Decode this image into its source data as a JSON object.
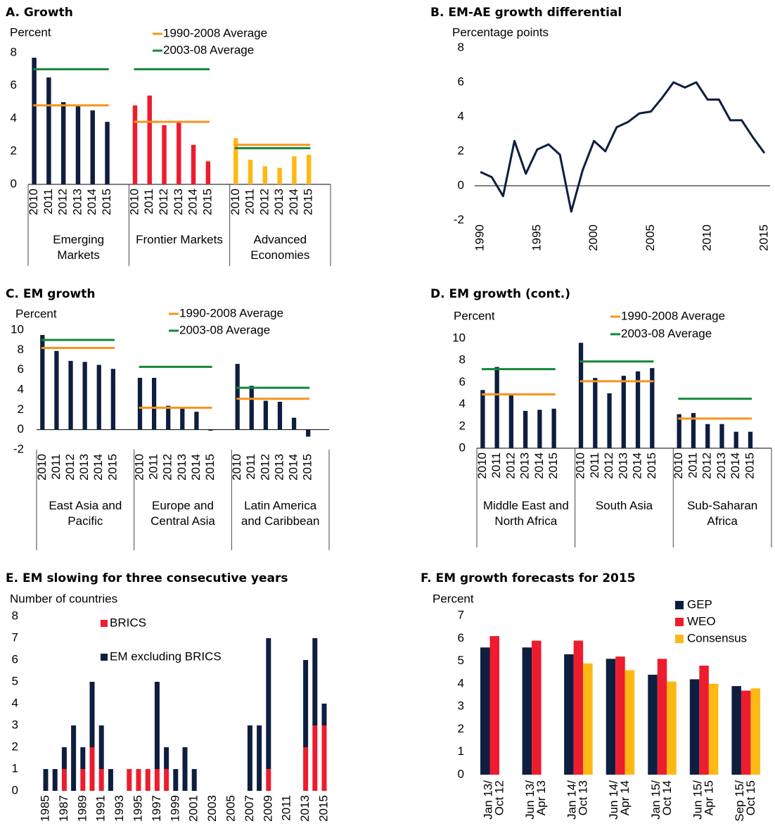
{
  "chart_data": [
    {
      "type": "grouped_bar",
      "title": "A. Growth",
      "ylabel": "Percent",
      "ylim": [
        0,
        8
      ],
      "yticks": [
        0,
        2,
        4,
        6,
        8
      ],
      "categories": [
        "2010",
        "2011",
        "2012",
        "2013",
        "2014",
        "2015"
      ],
      "reference_lines": [
        {
          "name": "1990-2008 Average",
          "color": "#f7941d"
        },
        {
          "name": "2003-08 Average",
          "color": "#13873a"
        }
      ],
      "groups": [
        {
          "name": "Emerging Markets",
          "color": "#0d1e40",
          "values": [
            7.7,
            6.5,
            5.0,
            4.8,
            4.5,
            3.8
          ],
          "averages": [
            4.8,
            7.0
          ]
        },
        {
          "name": "Frontier Markets",
          "color": "#ed1c2e",
          "values": [
            4.8,
            5.4,
            3.6,
            3.8,
            2.4,
            1.4
          ],
          "averages": [
            3.8,
            7.0
          ]
        },
        {
          "name": "Advanced Economies",
          "color": "#fdb913",
          "values": [
            2.8,
            1.5,
            1.1,
            1.0,
            1.7,
            1.8
          ],
          "averages": [
            2.4,
            2.2
          ]
        }
      ]
    },
    {
      "type": "line",
      "title": "B. EM-AE growth differential",
      "ylabel": "Percentage points",
      "color": "#0d1e40",
      "ylim": [
        -2,
        8
      ],
      "yticks": [
        -2,
        0,
        2,
        4,
        6,
        8
      ],
      "xlim": [
        1989.5,
        2015.5
      ],
      "xticks": [
        1990,
        1995,
        2000,
        2005,
        2010,
        2015
      ],
      "x": [
        1990,
        1991,
        1992,
        1993,
        1994,
        1995,
        1996,
        1997,
        1998,
        1999,
        2000,
        2001,
        2002,
        2003,
        2004,
        2005,
        2006,
        2007,
        2008,
        2009,
        2010,
        2011,
        2012,
        2013,
        2014,
        2015
      ],
      "values": [
        0.8,
        0.5,
        -0.6,
        2.6,
        0.7,
        2.1,
        2.4,
        1.8,
        -1.5,
        0.9,
        2.6,
        2.0,
        3.4,
        3.7,
        4.2,
        4.3,
        5.1,
        6.0,
        5.7,
        6.0,
        5.0,
        5.0,
        3.8,
        3.8,
        2.8,
        1.9
      ]
    },
    {
      "type": "grouped_bar",
      "title": "C. EM growth",
      "ylabel": "Percent",
      "ylim": [
        -2,
        10
      ],
      "yticks": [
        -2,
        0,
        2,
        4,
        6,
        8,
        10
      ],
      "categories": [
        "2010",
        "2011",
        "2012",
        "2013",
        "2014",
        "2015"
      ],
      "reference_lines": [
        {
          "name": "1990-2008 Average",
          "color": "#f7941d"
        },
        {
          "name": "2003-08 Average",
          "color": "#13873a"
        }
      ],
      "groups": [
        {
          "name": "East Asia and Pacific",
          "color": "#0d1e40",
          "values": [
            9.5,
            7.9,
            6.9,
            6.8,
            6.5,
            6.1
          ],
          "averages": [
            8.2,
            9.0
          ]
        },
        {
          "name": "Europe and Central Asia",
          "color": "#0d1e40",
          "values": [
            5.2,
            5.2,
            2.4,
            2.1,
            1.8,
            -0.1
          ],
          "averages": [
            2.2,
            6.3
          ]
        },
        {
          "name": "Latin America and Caribbean",
          "color": "#0d1e40",
          "values": [
            6.6,
            4.4,
            2.9,
            2.8,
            1.2,
            -0.7
          ],
          "averages": [
            3.1,
            4.2
          ]
        }
      ]
    },
    {
      "type": "grouped_bar",
      "title": "D. EM growth (cont.)",
      "ylabel": "Percent",
      "ylim": [
        0,
        10
      ],
      "yticks": [
        0,
        2,
        4,
        6,
        8,
        10
      ],
      "categories": [
        "2010",
        "2011",
        "2012",
        "2013",
        "2014",
        "2015"
      ],
      "reference_lines": [
        {
          "name": "1990-2008 Average",
          "color": "#f7941d"
        },
        {
          "name": "2003-08 Average",
          "color": "#13873a"
        }
      ],
      "groups": [
        {
          "name": "Middle East and North Africa",
          "color": "#0d1e40",
          "values": [
            5.3,
            7.4,
            4.8,
            3.4,
            3.5,
            3.6
          ],
          "averages": [
            4.9,
            7.2
          ]
        },
        {
          "name": "South Asia",
          "color": "#0d1e40",
          "values": [
            9.6,
            6.4,
            5.0,
            6.6,
            7.0,
            7.3
          ],
          "averages": [
            6.1,
            7.9
          ]
        },
        {
          "name": "Sub-Saharan Africa",
          "color": "#0d1e40",
          "values": [
            3.1,
            3.2,
            2.2,
            2.2,
            1.5,
            1.5
          ],
          "averages": [
            2.7,
            4.5
          ]
        }
      ]
    },
    {
      "type": "stacked_bar",
      "title": "E. EM slowing for three consecutive years",
      "ylabel": "Number of countries",
      "ylim": [
        0,
        8
      ],
      "yticks": [
        0,
        1,
        2,
        3,
        4,
        5,
        6,
        7,
        8
      ],
      "categories": [
        "1985",
        null,
        "1987",
        null,
        "1989",
        null,
        "1991",
        null,
        "1993",
        null,
        "1995",
        null,
        "1997",
        null,
        "1999",
        null,
        "2001",
        null,
        "2003",
        null,
        "2005",
        null,
        "2007",
        null,
        "2009",
        null,
        "2011",
        null,
        "2013",
        null,
        "2015"
      ],
      "series": [
        {
          "name": "BRICS",
          "color": "#ed1c2e",
          "values": [
            0,
            0,
            1,
            0,
            1,
            2,
            1,
            0,
            0,
            1,
            1,
            1,
            1,
            1,
            0,
            0,
            0,
            0,
            0,
            0,
            0,
            0,
            0,
            0,
            1,
            0,
            0,
            0,
            2,
            3,
            3
          ]
        },
        {
          "name": "EM excluding BRICS",
          "color": "#0d1e40",
          "values": [
            1,
            1,
            1,
            3,
            1,
            3,
            2,
            1,
            0,
            0,
            0,
            0,
            4,
            1,
            1,
            2,
            1,
            0,
            0,
            0,
            0,
            0,
            3,
            3,
            6,
            0,
            0,
            0,
            4,
            4,
            1
          ]
        }
      ]
    },
    {
      "type": "bar",
      "title": "F. EM growth forecasts for 2015",
      "ylabel": "Percent",
      "ylim": [
        0,
        7
      ],
      "yticks": [
        0,
        1,
        2,
        3,
        4,
        5,
        6,
        7
      ],
      "categories": [
        [
          "Jan 13/",
          "Oct 12"
        ],
        [
          "Jun 13/",
          "Apr 13"
        ],
        [
          "Jan 14/",
          "Oct 13"
        ],
        [
          "Jun 14/",
          "Apr 14"
        ],
        [
          "Jan 15/",
          "Oct 14"
        ],
        [
          "Jun 15/",
          "Apr 15"
        ],
        [
          "Sep 15/",
          "Oct 15"
        ]
      ],
      "series": [
        {
          "name": "GEP",
          "color": "#0d1e40",
          "values": [
            5.6,
            5.6,
            5.3,
            5.1,
            4.4,
            4.2,
            3.9
          ]
        },
        {
          "name": "WEO",
          "color": "#ed1c2e",
          "values": [
            6.1,
            5.9,
            5.9,
            5.2,
            5.1,
            4.8,
            3.7
          ]
        },
        {
          "name": "Consensus",
          "color": "#fdb913",
          "values": [
            null,
            null,
            4.9,
            4.6,
            4.1,
            4.0,
            3.8
          ]
        }
      ]
    }
  ]
}
